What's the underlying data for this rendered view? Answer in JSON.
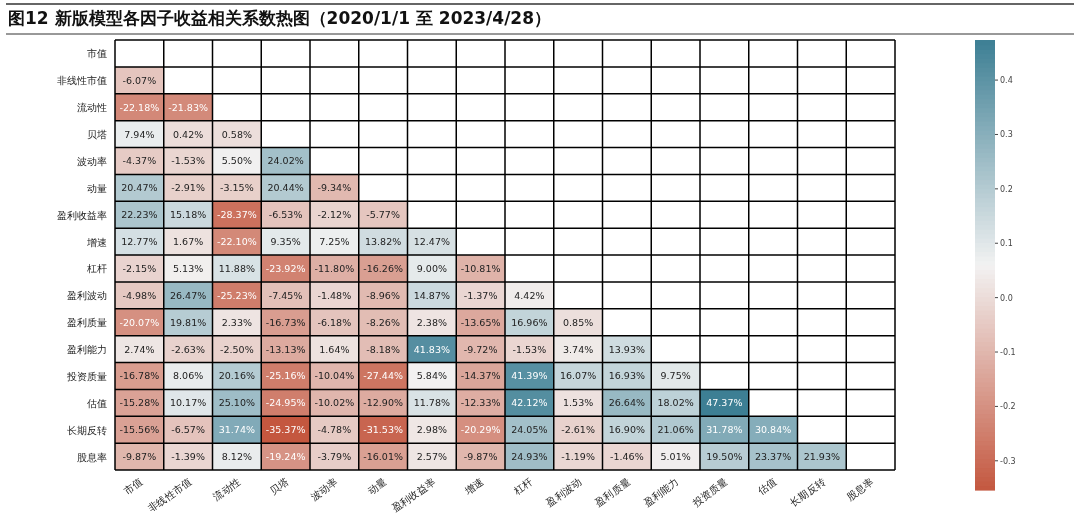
{
  "chart_data": {
    "type": "heatmap",
    "title": "图12 新版模型各因子收益相关系数热图（2020/1/1 至 2023/4/28）",
    "categories": [
      "市值",
      "非线性市值",
      "流动性",
      "贝塔",
      "波动率",
      "动量",
      "盈利收益率",
      "增速",
      "杠杆",
      "盈利波动",
      "盈利质量",
      "盈利能力",
      "投资质量",
      "估值",
      "长期反转",
      "股息率"
    ],
    "y_categories": [
      "市值",
      "非线性市值",
      "流动性",
      "贝塔",
      "波动率",
      "动量",
      "盈利收益率",
      "增速",
      "杠杆",
      "盈利波动",
      "盈利质量",
      "盈利能力",
      "投资质量",
      "估值",
      "长期反转",
      "股息率"
    ],
    "cells": [
      [
        null,
        null,
        null,
        null,
        null,
        null,
        null,
        null,
        null,
        null,
        null,
        null,
        null,
        null,
        null,
        null
      ],
      [
        -0.0607,
        null,
        null,
        null,
        null,
        null,
        null,
        null,
        null,
        null,
        null,
        null,
        null,
        null,
        null,
        null
      ],
      [
        -0.2218,
        -0.2183,
        null,
        null,
        null,
        null,
        null,
        null,
        null,
        null,
        null,
        null,
        null,
        null,
        null,
        null
      ],
      [
        0.0794,
        0.0042,
        0.0058,
        null,
        null,
        null,
        null,
        null,
        null,
        null,
        null,
        null,
        null,
        null,
        null,
        null
      ],
      [
        -0.0437,
        -0.0153,
        0.055,
        0.2402,
        null,
        null,
        null,
        null,
        null,
        null,
        null,
        null,
        null,
        null,
        null,
        null
      ],
      [
        0.2047,
        -0.0291,
        -0.0315,
        0.2044,
        -0.0934,
        null,
        null,
        null,
        null,
        null,
        null,
        null,
        null,
        null,
        null,
        null
      ],
      [
        0.2223,
        0.1518,
        -0.2837,
        -0.0653,
        -0.0212,
        -0.0577,
        null,
        null,
        null,
        null,
        null,
        null,
        null,
        null,
        null,
        null
      ],
      [
        0.1277,
        0.0167,
        -0.221,
        0.0935,
        0.0725,
        0.1382,
        0.1247,
        null,
        null,
        null,
        null,
        null,
        null,
        null,
        null,
        null
      ],
      [
        -0.0215,
        0.0513,
        0.1188,
        -0.2392,
        -0.118,
        -0.1626,
        0.09,
        -0.1081,
        null,
        null,
        null,
        null,
        null,
        null,
        null,
        null
      ],
      [
        -0.0498,
        0.2647,
        -0.2523,
        -0.0745,
        -0.0148,
        -0.0896,
        0.1487,
        -0.0137,
        0.0442,
        null,
        null,
        null,
        null,
        null,
        null,
        null
      ],
      [
        -0.2007,
        0.1981,
        0.0233,
        -0.1673,
        -0.0618,
        -0.0826,
        0.0238,
        -0.1365,
        0.1696,
        0.0085,
        null,
        null,
        null,
        null,
        null,
        null
      ],
      [
        0.0274,
        -0.0263,
        -0.025,
        -0.1313,
        0.0164,
        -0.0818,
        0.4183,
        -0.0972,
        -0.0153,
        0.0374,
        0.1393,
        null,
        null,
        null,
        null,
        null
      ],
      [
        -0.1678,
        0.0806,
        0.2016,
        -0.2516,
        -0.1004,
        -0.2744,
        0.0584,
        -0.1437,
        0.4139,
        0.1607,
        0.1693,
        0.0975,
        null,
        null,
        null,
        null
      ],
      [
        -0.1528,
        0.1017,
        0.251,
        -0.2495,
        -0.1002,
        -0.129,
        0.1178,
        -0.1233,
        0.4212,
        0.0153,
        0.2664,
        0.1802,
        0.4737,
        null,
        null,
        null
      ],
      [
        -0.1556,
        -0.0657,
        0.3174,
        -0.3537,
        -0.0478,
        -0.3153,
        0.0298,
        -0.2029,
        0.2405,
        -0.0261,
        0.169,
        0.2106,
        0.3178,
        0.3084,
        null,
        null
      ],
      [
        -0.0987,
        -0.0139,
        0.0812,
        -0.1924,
        -0.0379,
        -0.1601,
        0.0257,
        -0.0987,
        0.2493,
        -0.0119,
        -0.0146,
        0.0501,
        0.195,
        0.2337,
        0.2193,
        null
      ]
    ],
    "cell_labels": [
      [
        null,
        null,
        null,
        null,
        null,
        null,
        null,
        null,
        null,
        null,
        null,
        null,
        null,
        null,
        null,
        null
      ],
      [
        "-6.07%",
        null,
        null,
        null,
        null,
        null,
        null,
        null,
        null,
        null,
        null,
        null,
        null,
        null,
        null,
        null
      ],
      [
        "-22.18%",
        "-21.83%",
        null,
        null,
        null,
        null,
        null,
        null,
        null,
        null,
        null,
        null,
        null,
        null,
        null,
        null
      ],
      [
        "7.94%",
        "0.42%",
        "0.58%",
        null,
        null,
        null,
        null,
        null,
        null,
        null,
        null,
        null,
        null,
        null,
        null,
        null
      ],
      [
        "-4.37%",
        "-1.53%",
        "5.50%",
        "24.02%",
        null,
        null,
        null,
        null,
        null,
        null,
        null,
        null,
        null,
        null,
        null,
        null
      ],
      [
        "20.47%",
        "-2.91%",
        "-3.15%",
        "20.44%",
        "-9.34%",
        null,
        null,
        null,
        null,
        null,
        null,
        null,
        null,
        null,
        null,
        null
      ],
      [
        "22.23%",
        "15.18%",
        "-28.37%",
        "-6.53%",
        "-2.12%",
        "-5.77%",
        null,
        null,
        null,
        null,
        null,
        null,
        null,
        null,
        null,
        null
      ],
      [
        "12.77%",
        "1.67%",
        "-22.10%",
        "9.35%",
        "7.25%",
        "13.82%",
        "12.47%",
        null,
        null,
        null,
        null,
        null,
        null,
        null,
        null,
        null
      ],
      [
        "-2.15%",
        "5.13%",
        "11.88%",
        "-23.92%",
        "-11.80%",
        "-16.26%",
        "9.00%",
        "-10.81%",
        null,
        null,
        null,
        null,
        null,
        null,
        null,
        null
      ],
      [
        "-4.98%",
        "26.47%",
        "-25.23%",
        "-7.45%",
        "-1.48%",
        "-8.96%",
        "14.87%",
        "-1.37%",
        "4.42%",
        null,
        null,
        null,
        null,
        null,
        null,
        null
      ],
      [
        "-20.07%",
        "19.81%",
        "2.33%",
        "-16.73%",
        "-6.18%",
        "-8.26%",
        "2.38%",
        "-13.65%",
        "16.96%",
        "0.85%",
        null,
        null,
        null,
        null,
        null,
        null
      ],
      [
        "2.74%",
        "-2.63%",
        "-2.50%",
        "-13.13%",
        "1.64%",
        "-8.18%",
        "41.83%",
        "-9.72%",
        "-1.53%",
        "3.74%",
        "13.93%",
        null,
        null,
        null,
        null,
        null
      ],
      [
        "-16.78%",
        "8.06%",
        "20.16%",
        "-25.16%",
        "-10.04%",
        "-27.44%",
        "5.84%",
        "-14.37%",
        "41.39%",
        "16.07%",
        "16.93%",
        "9.75%",
        null,
        null,
        null,
        null
      ],
      [
        "-15.28%",
        "10.17%",
        "25.10%",
        "-24.95%",
        "-10.02%",
        "-12.90%",
        "11.78%",
        "-12.33%",
        "42.12%",
        "1.53%",
        "26.64%",
        "18.02%",
        "47.37%",
        null,
        null,
        null
      ],
      [
        "-15.56%",
        "-6.57%",
        "31.74%",
        "-35.37%",
        "-4.78%",
        "-31.53%",
        "2.98%",
        "-20.29%",
        "24.05%",
        "-2.61%",
        "16.90%",
        "21.06%",
        "31.78%",
        "30.84%",
        null,
        null
      ],
      [
        "-9.87%",
        "-1.39%",
        "8.12%",
        "-19.24%",
        "-3.79%",
        "-16.01%",
        "2.57%",
        "-9.87%",
        "24.93%",
        "-1.19%",
        "-1.46%",
        "5.01%",
        "19.50%",
        "23.37%",
        "21.93%",
        null
      ]
    ],
    "clim": [
      -0.3537,
      0.4737
    ],
    "cticks": [
      -0.3,
      -0.2,
      -0.1,
      {
        "value": 0,
        "label": "0.0"
      },
      0.1,
      0.2,
      0.3,
      0.4
    ]
  }
}
